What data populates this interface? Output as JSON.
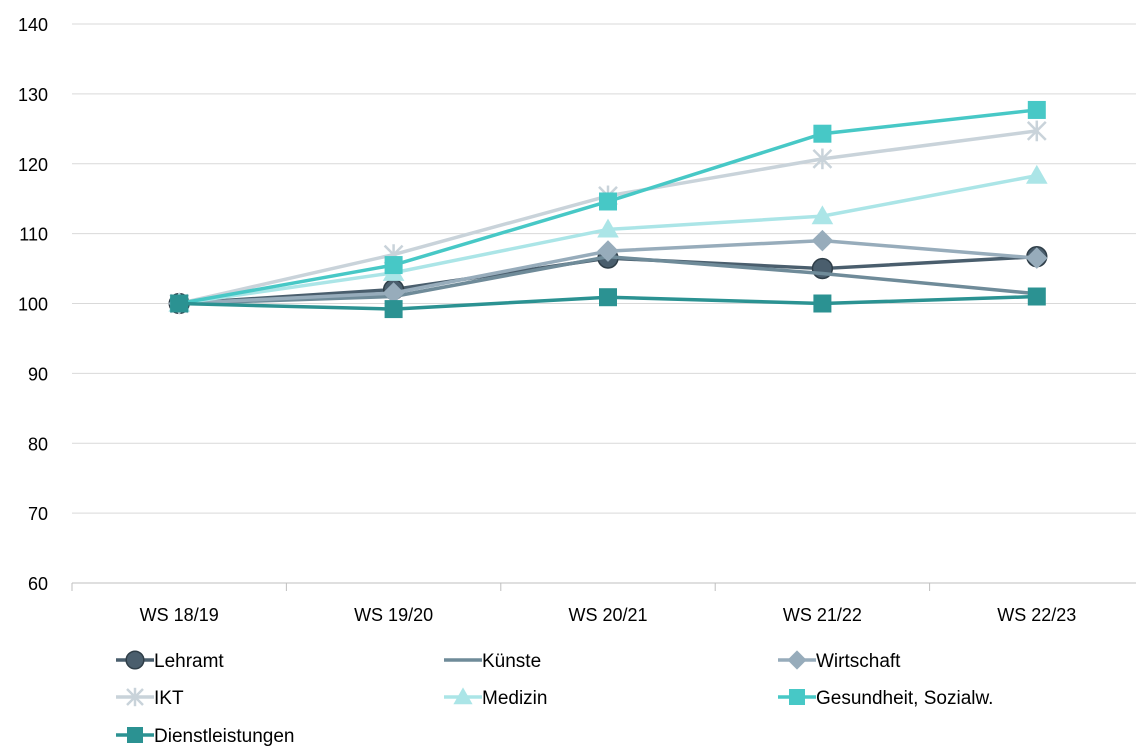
{
  "chart_data": {
    "type": "line",
    "categories": [
      "WS 18/19",
      "WS 19/20",
      "WS 20/21",
      "WS 21/22",
      "WS 22/23"
    ],
    "ylim": [
      60,
      140
    ],
    "yticks": [
      60,
      70,
      80,
      90,
      100,
      110,
      120,
      130,
      140
    ],
    "grid": "horizontal",
    "legend_position": "bottom",
    "series": [
      {
        "name": "Lehramt",
        "color": "#4a5e6d",
        "marker": "circle",
        "values": [
          100,
          102,
          106.5,
          105,
          106.7
        ]
      },
      {
        "name": "Künste",
        "color": "#6f8b99",
        "marker": "none",
        "values": [
          100,
          101,
          106.7,
          104.3,
          101.4
        ]
      },
      {
        "name": "Wirtschaft",
        "color": "#97acbb",
        "marker": "diamond",
        "values": [
          100,
          101.5,
          107.5,
          109,
          106.5
        ]
      },
      {
        "name": "IKT",
        "color": "#c9d3da",
        "marker": "star",
        "values": [
          100,
          107,
          115.4,
          120.7,
          124.7
        ]
      },
      {
        "name": "Medizin",
        "color": "#abe5e7",
        "marker": "triangle",
        "values": [
          100,
          104.4,
          110.6,
          112.5,
          118.3
        ]
      },
      {
        "name": "Gesundheit, Sozialw.",
        "color": "#47c8c6",
        "marker": "square",
        "values": [
          100,
          105.5,
          114.6,
          124.3,
          127.7
        ]
      },
      {
        "name": "Dienstleistungen",
        "color": "#2b9292",
        "marker": "square",
        "values": [
          100,
          99.2,
          100.9,
          100,
          101
        ]
      }
    ]
  }
}
